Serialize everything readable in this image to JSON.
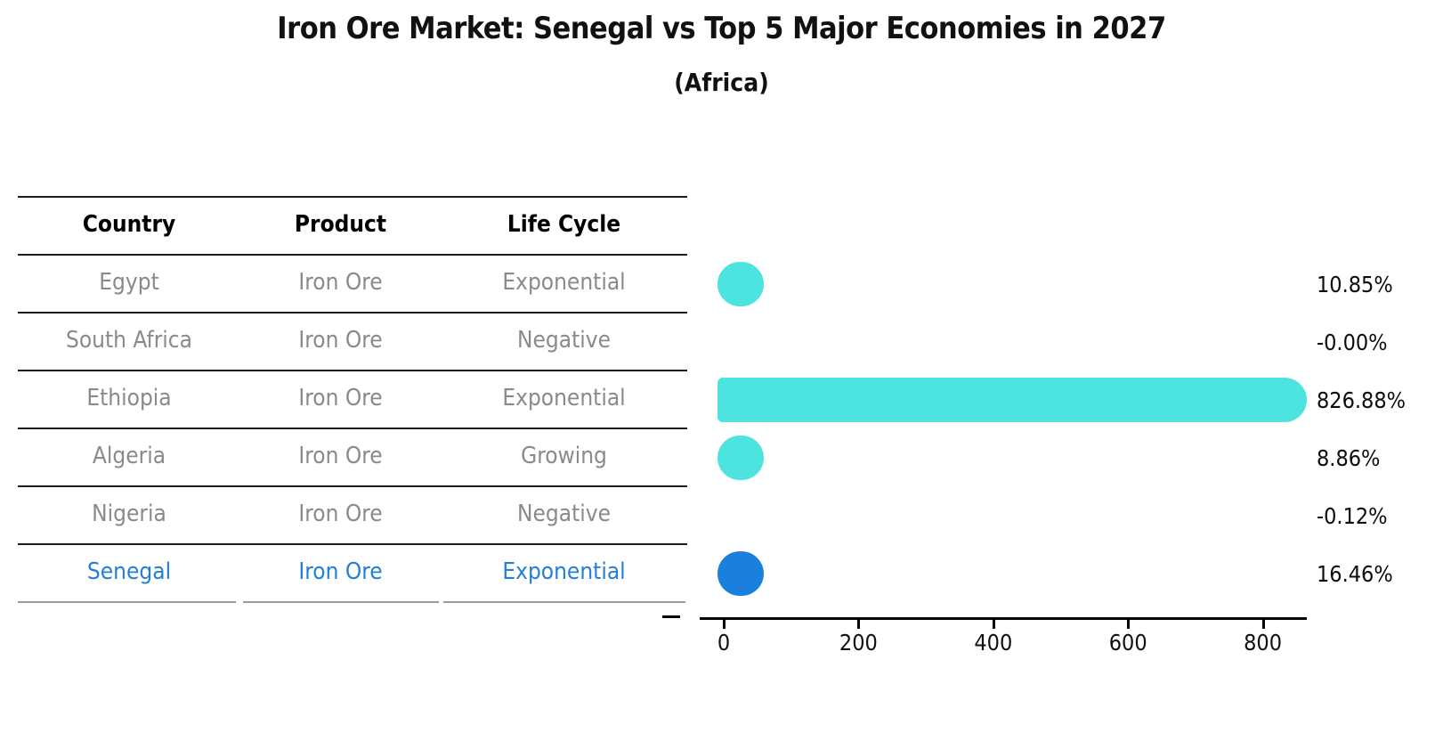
{
  "header": {
    "title": "Iron Ore Market: Senegal vs Top 5 Major Economies in 2027",
    "subtitle": "(Africa)"
  },
  "table": {
    "columns": [
      "Country",
      "Product",
      "Life Cycle"
    ],
    "rows": [
      {
        "country": "Egypt",
        "product": "Iron Ore",
        "life_cycle": "Exponential",
        "highlighted": false
      },
      {
        "country": "South Africa",
        "product": "Iron Ore",
        "life_cycle": "Negative",
        "highlighted": false
      },
      {
        "country": "Ethiopia",
        "product": "Iron Ore",
        "life_cycle": "Exponential",
        "highlighted": false
      },
      {
        "country": "Algeria",
        "product": "Iron Ore",
        "life_cycle": "Growing",
        "highlighted": false
      },
      {
        "country": "Nigeria",
        "product": "Iron Ore",
        "life_cycle": "Negative",
        "highlighted": false
      },
      {
        "country": "Senegal",
        "product": "Iron Ore",
        "life_cycle": "Exponential",
        "highlighted": true
      }
    ],
    "colors": {
      "header_text": "#000000",
      "row_text": "#8a8a8a",
      "highlight_text": "#2580d5",
      "divider": "#1c1c1c",
      "bottom_divider": "#9a9a9a"
    }
  },
  "chart_data": {
    "type": "bar",
    "orientation": "horizontal",
    "title": "Iron Ore Market: Senegal vs Top 5 Major Economies in 2027 (Africa)",
    "categories": [
      "Egypt",
      "South Africa",
      "Ethiopia",
      "Algeria",
      "Nigeria",
      "Senegal"
    ],
    "values": [
      10.85,
      -0.0,
      826.88,
      8.86,
      -0.12,
      16.46
    ],
    "value_labels": [
      "10.85%",
      "-0.00%",
      "826.88%",
      "8.86%",
      "-0.12%",
      "16.46%"
    ],
    "x_ticks": [
      0,
      200,
      400,
      600,
      800
    ],
    "xlim": [
      -45,
      870
    ],
    "grid": false,
    "legend": false,
    "highlight_index": 5,
    "colors": {
      "bar": "#4de4df",
      "highlight_bar": "#1b80dc",
      "axis": "#000000",
      "value_label": "#0d0d0d"
    }
  }
}
